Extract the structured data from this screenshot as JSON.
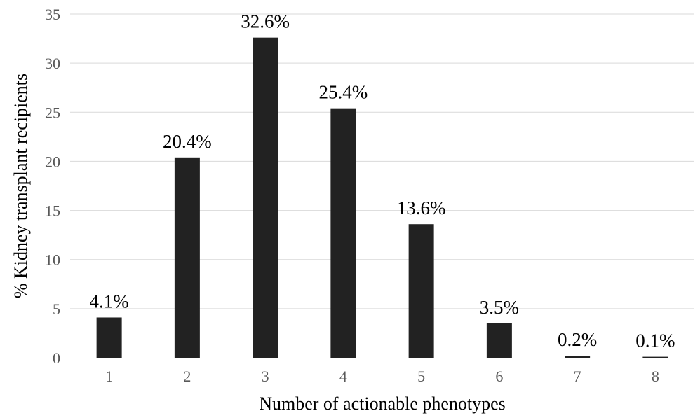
{
  "chart_data": {
    "type": "bar",
    "title": "",
    "xlabel": "Number of actionable phenotypes",
    "ylabel": "% Kidney transplant recipients",
    "categories": [
      "1",
      "2",
      "3",
      "4",
      "5",
      "6",
      "7",
      "8"
    ],
    "values": [
      4.1,
      20.4,
      32.6,
      25.4,
      13.6,
      3.5,
      0.2,
      0.1
    ],
    "data_labels": [
      "4.1%",
      "20.4%",
      "32.6%",
      "25.4%",
      "13.6%",
      "3.5%",
      "0.2%",
      "0.1%"
    ],
    "ylim": [
      0,
      35
    ],
    "yticks": [
      0,
      5,
      10,
      15,
      20,
      25,
      30,
      35
    ],
    "grid": true,
    "legend": "none",
    "bar_color": "#222222"
  }
}
